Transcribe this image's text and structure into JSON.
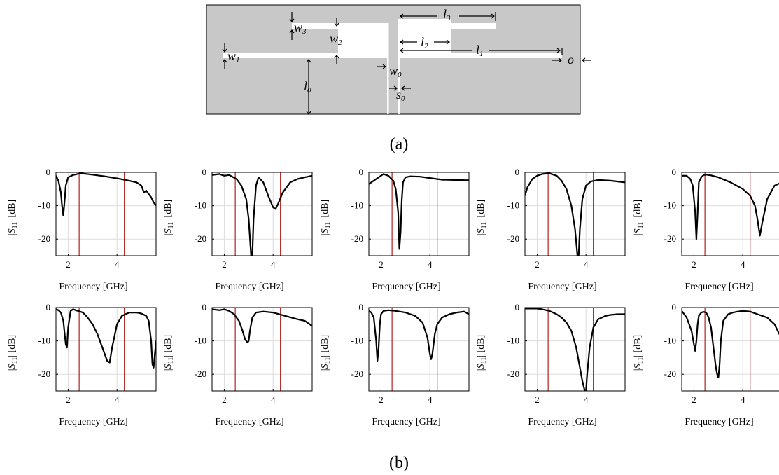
{
  "captions": {
    "a": "(a)",
    "b": "(b)"
  },
  "diagram": {
    "labels": {
      "w1": {
        "main": "w",
        "sub": "1"
      },
      "w2": {
        "main": "w",
        "sub": "2"
      },
      "w3": {
        "main": "w",
        "sub": "3"
      },
      "w0": {
        "main": "w",
        "sub": "0"
      },
      "l0": {
        "main": "l",
        "sub": "0"
      },
      "l1": {
        "main": "l",
        "sub": "1"
      },
      "l2": {
        "main": "l",
        "sub": "2"
      },
      "l3": {
        "main": "l",
        "sub": "3"
      },
      "s0": {
        "main": "s",
        "sub": "0"
      },
      "o": {
        "main": "o",
        "sub": ""
      }
    },
    "colors": {
      "substrate": "#c8c8c8",
      "slot": "#ffffff",
      "outline": "#000000"
    }
  },
  "axis_text": {
    "xlabel": "Frequency [GHz]",
    "ylabel": {
      "prefix": "|",
      "S": "S",
      "sub": "11",
      "suffix": "| [dB]"
    }
  },
  "chart_data": [
    {
      "type": "line",
      "panel": "row1-col1",
      "xlim": [
        1.5,
        5.6
      ],
      "ylim": [
        -25,
        0
      ],
      "xticks": [
        2,
        4
      ],
      "yticks": [
        0,
        -10,
        -20
      ],
      "marker_lines_x": [
        2.45,
        4.3
      ],
      "grid": true,
      "x": [
        1.5,
        1.6,
        1.7,
        1.75,
        1.8,
        1.85,
        1.9,
        2.0,
        2.2,
        2.5,
        3.0,
        3.5,
        4.0,
        4.5,
        4.8,
        5.0,
        5.1,
        5.2,
        5.3,
        5.4,
        5.5,
        5.6
      ],
      "y": [
        -1,
        -2.5,
        -6,
        -10,
        -13,
        -9,
        -4,
        -1.5,
        -0.8,
        -0.3,
        -0.7,
        -1.2,
        -1.8,
        -2.5,
        -3,
        -4,
        -6,
        -5.5,
        -6.5,
        -7.5,
        -9,
        -10
      ]
    },
    {
      "type": "line",
      "panel": "row1-col2",
      "xlim": [
        1.5,
        5.6
      ],
      "ylim": [
        -25,
        0
      ],
      "xticks": [
        2,
        4
      ],
      "yticks": [
        0,
        -10,
        -20
      ],
      "marker_lines_x": [
        2.45,
        4.3
      ],
      "grid": true,
      "x": [
        1.5,
        1.8,
        2.0,
        2.2,
        2.5,
        2.7,
        2.9,
        3.0,
        3.1,
        3.15,
        3.2,
        3.3,
        3.4,
        3.6,
        3.8,
        4.0,
        4.1,
        4.2,
        4.4,
        4.7,
        5.0,
        5.3,
        5.6
      ],
      "y": [
        -0.8,
        -0.5,
        -1,
        -0.8,
        -2,
        -4,
        -8,
        -14,
        -25,
        -25,
        -14,
        -4,
        -1.5,
        -3,
        -7,
        -10.5,
        -11,
        -9.5,
        -6,
        -3,
        -2,
        -1.5,
        -1
      ]
    },
    {
      "type": "line",
      "panel": "row1-col3",
      "xlim": [
        1.5,
        5.6
      ],
      "ylim": [
        -25,
        0
      ],
      "xticks": [
        2,
        4
      ],
      "yticks": [
        0,
        -10,
        -20
      ],
      "marker_lines_x": [
        2.45,
        4.3
      ],
      "grid": true,
      "x": [
        1.5,
        1.8,
        2.0,
        2.1,
        2.3,
        2.5,
        2.6,
        2.7,
        2.75,
        2.8,
        2.85,
        2.9,
        3.0,
        3.2,
        3.6,
        4.0,
        4.5,
        5.0,
        5.6
      ],
      "y": [
        -3.5,
        -2,
        -1,
        -0.5,
        -1,
        -2.5,
        -5,
        -12,
        -23,
        -18,
        -8,
        -3,
        -1.5,
        -1.2,
        -1.3,
        -1.7,
        -2.2,
        -2.3,
        -2.4
      ]
    },
    {
      "type": "line",
      "panel": "row1-col4",
      "xlim": [
        1.5,
        5.6
      ],
      "ylim": [
        -25,
        0
      ],
      "xticks": [
        2,
        4
      ],
      "yticks": [
        0,
        -10,
        -20
      ],
      "marker_lines_x": [
        2.45,
        4.3
      ],
      "grid": true,
      "x": [
        1.5,
        1.6,
        1.8,
        2.0,
        2.2,
        2.5,
        2.8,
        3.0,
        3.2,
        3.4,
        3.55,
        3.65,
        3.7,
        3.75,
        3.85,
        4.0,
        4.2,
        4.5,
        5.0,
        5.6
      ],
      "y": [
        -7,
        -4.5,
        -2,
        -1,
        -0.5,
        -0.3,
        -1,
        -2.5,
        -5,
        -10,
        -17,
        -25,
        -25,
        -17,
        -8,
        -4,
        -2.7,
        -2.3,
        -2.5,
        -3
      ]
    },
    {
      "type": "line",
      "panel": "row1-col5",
      "xlim": [
        1.5,
        5.6
      ],
      "ylim": [
        -25,
        0
      ],
      "xticks": [
        2,
        4
      ],
      "yticks": [
        0,
        -10,
        -20
      ],
      "marker_lines_x": [
        2.45,
        4.3
      ],
      "grid": true,
      "x": [
        1.5,
        1.7,
        1.85,
        1.95,
        2.05,
        2.1,
        2.15,
        2.2,
        2.3,
        2.4,
        2.5,
        2.7,
        3.0,
        3.5,
        4.0,
        4.3,
        4.5,
        4.6,
        4.7,
        4.8,
        5.0,
        5.3,
        5.6
      ],
      "y": [
        -1,
        -1,
        -2,
        -4,
        -12,
        -20,
        -12,
        -3,
        -1.5,
        -0.8,
        -0.7,
        -0.9,
        -1.5,
        -3,
        -5,
        -7,
        -10,
        -14,
        -19,
        -15,
        -8,
        -4,
        -3
      ]
    },
    {
      "type": "line",
      "panel": "row2-col1",
      "xlim": [
        1.5,
        5.6
      ],
      "ylim": [
        -25,
        0
      ],
      "xticks": [
        2,
        4
      ],
      "yticks": [
        0,
        -10,
        -20
      ],
      "marker_lines_x": [
        2.45,
        4.3
      ],
      "grid": true,
      "x": [
        1.5,
        1.6,
        1.7,
        1.8,
        1.9,
        1.95,
        2.0,
        2.1,
        2.2,
        2.4,
        2.6,
        2.8,
        3.0,
        3.2,
        3.4,
        3.6,
        3.7,
        3.8,
        4.0,
        4.2,
        4.5,
        4.8,
        5.0,
        5.2,
        5.3,
        5.4,
        5.45,
        5.5,
        5.6
      ],
      "y": [
        -0.5,
        -0.8,
        -1.5,
        -4,
        -11,
        -12,
        -6,
        -1,
        -0.5,
        -1,
        -1.5,
        -3,
        -5,
        -8,
        -12,
        -16,
        -16.5,
        -12,
        -5,
        -2.5,
        -1.5,
        -1.5,
        -1.8,
        -2.5,
        -4,
        -10,
        -17,
        -18,
        -10
      ]
    },
    {
      "type": "line",
      "panel": "row2-col2",
      "xlim": [
        1.5,
        5.6
      ],
      "ylim": [
        -25,
        0
      ],
      "xticks": [
        2,
        4
      ],
      "yticks": [
        0,
        -10,
        -20
      ],
      "marker_lines_x": [
        2.45,
        4.3
      ],
      "grid": true,
      "x": [
        1.5,
        1.8,
        2.0,
        2.2,
        2.4,
        2.6,
        2.75,
        2.85,
        2.95,
        3.0,
        3.05,
        3.15,
        3.3,
        3.6,
        4.0,
        4.5,
        5.0,
        5.3,
        5.6
      ],
      "y": [
        -0.5,
        -0.8,
        -0.5,
        -1,
        -2,
        -4,
        -7,
        -9.5,
        -10.5,
        -10,
        -7,
        -3,
        -1.5,
        -1.2,
        -1.5,
        -2.5,
        -3.5,
        -4,
        -5.5
      ]
    },
    {
      "type": "line",
      "panel": "row2-col3",
      "xlim": [
        1.5,
        5.6
      ],
      "ylim": [
        -25,
        0
      ],
      "xticks": [
        2,
        4
      ],
      "yticks": [
        0,
        -10,
        -20
      ],
      "marker_lines_x": [
        2.45,
        4.3
      ],
      "grid": true,
      "x": [
        1.5,
        1.6,
        1.7,
        1.8,
        1.85,
        1.9,
        1.95,
        2.0,
        2.1,
        2.3,
        2.6,
        3.0,
        3.4,
        3.7,
        3.9,
        4.0,
        4.05,
        4.1,
        4.2,
        4.3,
        4.5,
        4.8,
        5.1,
        5.4,
        5.6
      ],
      "y": [
        -1,
        -1.5,
        -3,
        -10,
        -16,
        -12,
        -5,
        -2,
        -1,
        -0.8,
        -1,
        -1.5,
        -2.5,
        -4.5,
        -9,
        -14,
        -15.5,
        -14,
        -8,
        -5,
        -3,
        -2,
        -1.5,
        -1.2,
        -2
      ]
    },
    {
      "type": "line",
      "panel": "row2-col4",
      "xlim": [
        1.5,
        5.6
      ],
      "ylim": [
        -25,
        0
      ],
      "xticks": [
        2,
        4
      ],
      "yticks": [
        0,
        -10,
        -20
      ],
      "marker_lines_x": [
        2.45,
        4.3
      ],
      "grid": true,
      "x": [
        1.5,
        1.8,
        2.0,
        2.2,
        2.5,
        2.8,
        3.0,
        3.2,
        3.4,
        3.6,
        3.75,
        3.85,
        3.95,
        4.0,
        4.05,
        4.15,
        4.3,
        4.5,
        4.8,
        5.0,
        5.3,
        5.6
      ],
      "y": [
        -0.3,
        -0.3,
        -0.3,
        -0.5,
        -1,
        -2,
        -3,
        -4.5,
        -7,
        -12,
        -18,
        -22,
        -25,
        -25,
        -20,
        -12,
        -6,
        -3.5,
        -2.5,
        -2.2,
        -2,
        -2
      ]
    },
    {
      "type": "line",
      "panel": "row2-col5",
      "xlim": [
        1.5,
        5.6
      ],
      "ylim": [
        -25,
        0
      ],
      "xticks": [
        2,
        4
      ],
      "yticks": [
        0,
        -10,
        -20
      ],
      "marker_lines_x": [
        2.45,
        4.3
      ],
      "grid": true,
      "x": [
        1.5,
        1.7,
        1.9,
        2.0,
        2.05,
        2.1,
        2.15,
        2.2,
        2.3,
        2.4,
        2.5,
        2.6,
        2.7,
        2.8,
        2.9,
        2.95,
        3.0,
        3.05,
        3.1,
        3.2,
        3.4,
        3.6,
        3.8,
        4.0,
        4.3,
        4.6,
        5.0,
        5.3,
        5.5,
        5.6
      ],
      "y": [
        -1,
        -3,
        -7,
        -11,
        -13,
        -10,
        -5,
        -2.5,
        -1.5,
        -1.3,
        -1.5,
        -3,
        -6,
        -12,
        -18,
        -20,
        -21,
        -17,
        -10,
        -4,
        -2,
        -1.5,
        -1.2,
        -1,
        -1.2,
        -2,
        -3,
        -5,
        -8,
        -8.5
      ]
    }
  ]
}
